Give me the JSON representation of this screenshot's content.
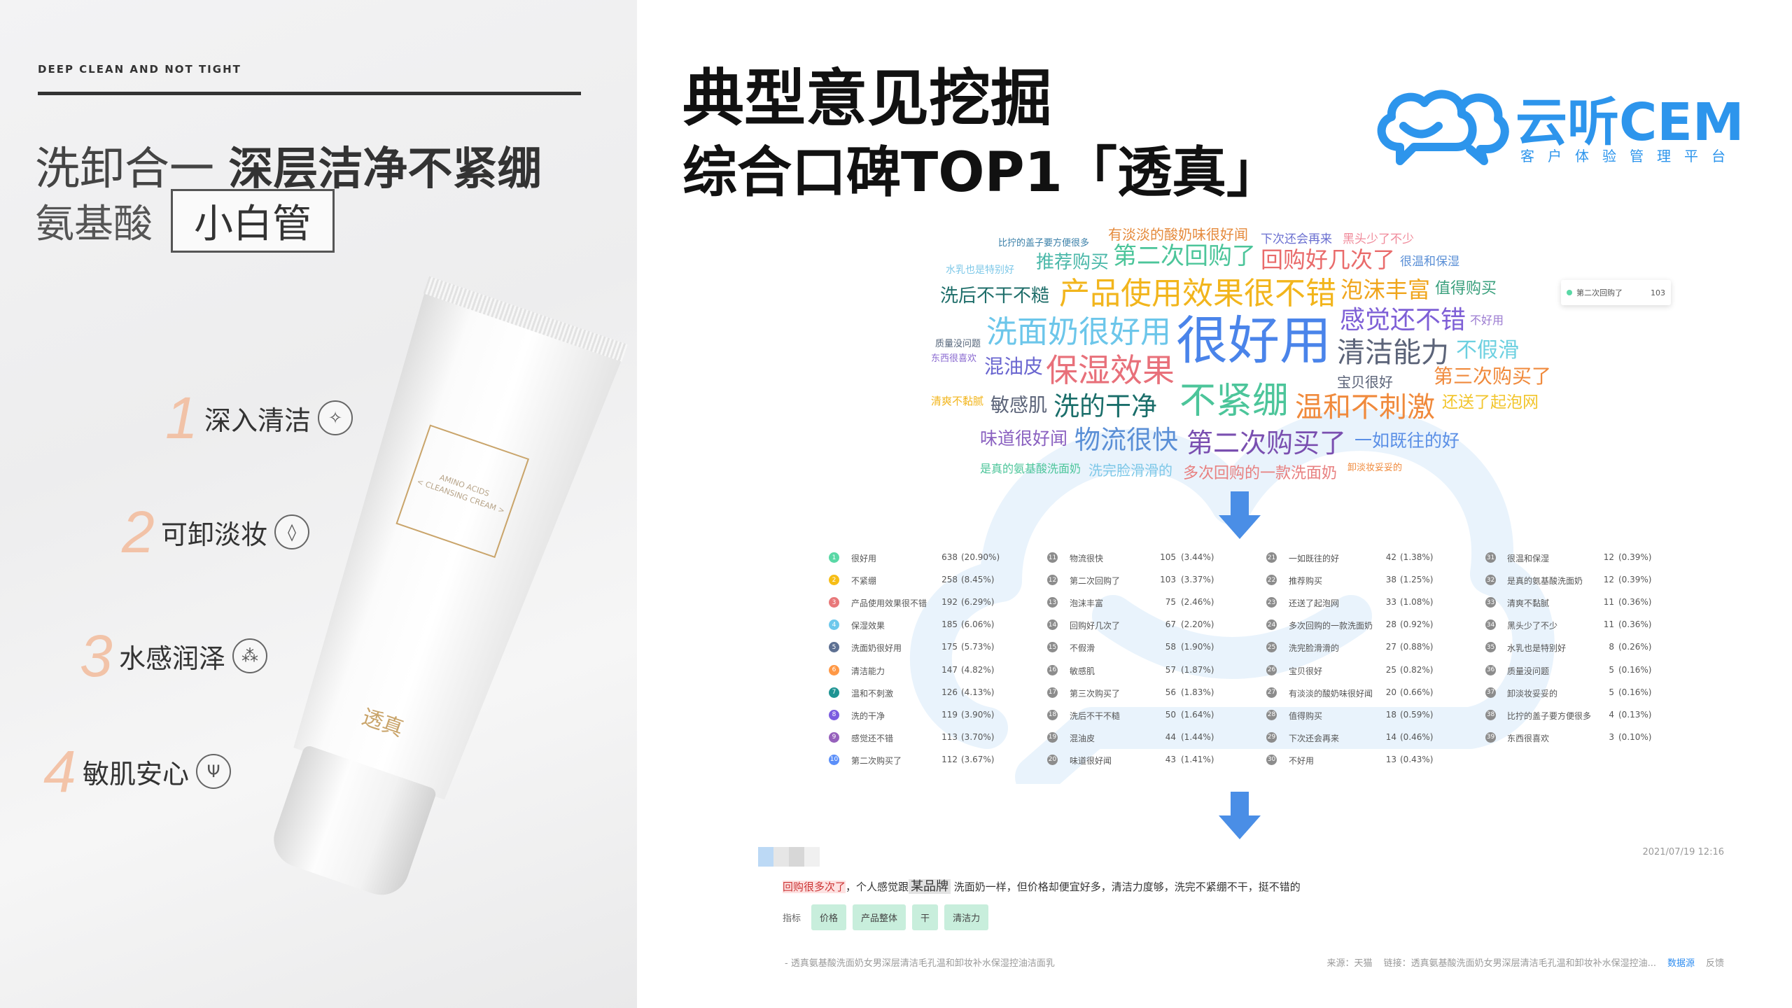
{
  "left": {
    "tagline": "DEEP CLEAN AND NOT TIGHT",
    "headline_light": "洗卸合一 ",
    "headline_bold": "深层洁净不紧绷",
    "sub_text": "氨基酸",
    "sub_box": "小白管",
    "features": [
      {
        "num": "1",
        "text": "深入清洁",
        "icon": "sparkle-icon",
        "glyph": "✧"
      },
      {
        "num": "2",
        "text": "可卸淡妆",
        "icon": "droplet-icon",
        "glyph": "💧"
      },
      {
        "num": "3",
        "text": "水感润泽",
        "icon": "bubbles-icon",
        "glyph": "⁂"
      },
      {
        "num": "4",
        "text": "敏肌安心",
        "icon": "sprout-icon",
        "glyph": "Ψ"
      }
    ],
    "tube": {
      "label_line1": "AMINO ACIDS",
      "label_line2": "< CLEANSING CREAM >",
      "brand": "透真"
    }
  },
  "title": {
    "line1": "典型意见挖掘",
    "line2": "综合口碑TOP1「透真」"
  },
  "logo": {
    "name": "云听CEM",
    "slogan": "客户体验管理平台",
    "color": "#2d95ec"
  },
  "wordcloud": {
    "words": [
      {
        "text": "比拧的盖子要方便很多",
        "color": "#3a7fa8"
      },
      {
        "text": "有淡淡的酸奶味很好闻",
        "color": "#e58a3c"
      },
      {
        "text": "下次还会再来",
        "color": "#6a6fd0"
      },
      {
        "text": "黑头少了不少",
        "color": "#f08a9a"
      },
      {
        "text": "水乳也是特别好",
        "color": "#7ec8e8"
      },
      {
        "text": "推荐购买",
        "color": "#4bb8a9"
      },
      {
        "text": "第二次回购了",
        "color": "#4cc59a"
      },
      {
        "text": "回购好几次了",
        "color": "#e96b6b"
      },
      {
        "text": "很温和保湿",
        "color": "#5a8fd6"
      },
      {
        "text": "洗后不干不糙",
        "color": "#1f6e6a"
      },
      {
        "text": "产品使用效果很不错",
        "color": "#f2b51c"
      },
      {
        "text": "泡沫丰富",
        "color": "#f0a51c"
      },
      {
        "text": "值得购买",
        "color": "#3aa07d"
      },
      {
        "text": "感觉还不错",
        "color": "#7e5fd6"
      },
      {
        "text": "不好用",
        "color": "#9a7ad0"
      },
      {
        "text": "洗面奶很好用",
        "color": "#6cc6ea"
      },
      {
        "text": "很好用",
        "color": "#4a84ea"
      },
      {
        "text": "清洁能力",
        "color": "#5b6378"
      },
      {
        "text": "不假滑",
        "color": "#6cd0e0"
      },
      {
        "text": "质量没问题",
        "color": "#55657a"
      },
      {
        "text": "东西很喜欢",
        "color": "#8a6ad0"
      },
      {
        "text": "混油皮",
        "color": "#6a66d0"
      },
      {
        "text": "保湿效果",
        "color": "#e8707a"
      },
      {
        "text": "宝贝很好",
        "color": "#5b6378"
      },
      {
        "text": "第三次购买了",
        "color": "#f08a3c"
      },
      {
        "text": "清爽不黏腻",
        "color": "#f2b51c"
      },
      {
        "text": "敏感肌",
        "color": "#5b6378"
      },
      {
        "text": "洗的干净",
        "color": "#1a6e6a"
      },
      {
        "text": "不紧绷",
        "color": "#4cc59a"
      },
      {
        "text": "温和不刺激",
        "color": "#f08a3c"
      },
      {
        "text": "还送了起泡网",
        "color": "#f2c52c"
      },
      {
        "text": "味道很好闻",
        "color": "#8a60c0"
      },
      {
        "text": "物流很快",
        "color": "#5a8fd6"
      },
      {
        "text": "第二次购买了",
        "color": "#7a4fb0"
      },
      {
        "text": "一如既往的好",
        "color": "#5a8fe6"
      },
      {
        "text": "是真的氨基酸洗面奶",
        "color": "#4cc59a"
      },
      {
        "text": "洗完脸滑滑的",
        "color": "#7ec8e8"
      },
      {
        "text": "多次回购的一款洗面奶",
        "color": "#e88080"
      },
      {
        "text": "卸淡妆妥妥的",
        "color": "#f08a3c"
      }
    ],
    "tooltip": {
      "label": "第二次回购了",
      "value": "103"
    }
  },
  "ranking": {
    "top_colors": [
      "#5ad8a6",
      "#f6bd16",
      "#e8787a",
      "#6dc8ec",
      "#5d7092",
      "#ff9845",
      "#1e9493",
      "#7b5ce0",
      "#9661bc",
      "#5b8ff9"
    ],
    "other_color": "#8c8c8c",
    "rows": [
      [
        "很好用",
        "638",
        "(20.90%)"
      ],
      [
        "不紧绷",
        "258",
        "(8.45%)"
      ],
      [
        "产品使用效果很不错",
        "192",
        "(6.29%)"
      ],
      [
        "保湿效果",
        "185",
        "(6.06%)"
      ],
      [
        "洗面奶很好用",
        "175",
        "(5.73%)"
      ],
      [
        "清洁能力",
        "147",
        "(4.82%)"
      ],
      [
        "温和不刺激",
        "126",
        "(4.13%)"
      ],
      [
        "洗的干净",
        "119",
        "(3.90%)"
      ],
      [
        "感觉还不错",
        "113",
        "(3.70%)"
      ],
      [
        "第二次购买了",
        "112",
        "(3.67%)"
      ],
      [
        "物流很快",
        "105",
        "(3.44%)"
      ],
      [
        "第二次回购了",
        "103",
        "(3.37%)"
      ],
      [
        "泡沫丰富",
        "75",
        "(2.46%)"
      ],
      [
        "回购好几次了",
        "67",
        "(2.20%)"
      ],
      [
        "不假滑",
        "58",
        "(1.90%)"
      ],
      [
        "敏感肌",
        "57",
        "(1.87%)"
      ],
      [
        "第三次购买了",
        "56",
        "(1.83%)"
      ],
      [
        "洗后不干不糙",
        "50",
        "(1.64%)"
      ],
      [
        "混油皮",
        "44",
        "(1.44%)"
      ],
      [
        "味道很好闻",
        "43",
        "(1.41%)"
      ],
      [
        "一如既往的好",
        "42",
        "(1.38%)"
      ],
      [
        "推荐购买",
        "38",
        "(1.25%)"
      ],
      [
        "还送了起泡网",
        "33",
        "(1.08%)"
      ],
      [
        "多次回购的一款洗面奶",
        "28",
        "(0.92%)"
      ],
      [
        "洗完脸滑滑的",
        "27",
        "(0.88%)"
      ],
      [
        "宝贝很好",
        "25",
        "(0.82%)"
      ],
      [
        "有淡淡的酸奶味很好闻",
        "20",
        "(0.66%)"
      ],
      [
        "值得购买",
        "18",
        "(0.59%)"
      ],
      [
        "下次还会再来",
        "14",
        "(0.46%)"
      ],
      [
        "不好用",
        "13",
        "(0.43%)"
      ],
      [
        "很温和保湿",
        "12",
        "(0.39%)"
      ],
      [
        "是真的氨基酸洗面奶",
        "12",
        "(0.39%)"
      ],
      [
        "清爽不黏腻",
        "11",
        "(0.36%)"
      ],
      [
        "黑头少了不少",
        "11",
        "(0.36%)"
      ],
      [
        "水乳也是特别好",
        "8",
        "(0.26%)"
      ],
      [
        "质量没问题",
        "5",
        "(0.16%)"
      ],
      [
        "卸淡妆妥妥的",
        "5",
        "(0.16%)"
      ],
      [
        "比拧的盖子要方便很多",
        "4",
        "(0.13%)"
      ],
      [
        "东西很喜欢",
        "3",
        "(0.10%)"
      ]
    ]
  },
  "review": {
    "timestamp": "2021/07/19 12:16",
    "highlight": "回购很多次了",
    "text_a": "，个人感觉跟",
    "brand": "某品牌",
    "text_b": " 洗面奶一样，但价格却便宜好多，清洁力度够，洗完不紧绷不干，挺不错的",
    "tags_label": "指标",
    "tags": [
      "价格",
      "产品整体",
      "干",
      "清洁力"
    ],
    "product": "- 透真氨基酸洗面奶女男深层清洁毛孔温和卸妆补水保湿控油洁面乳",
    "source": "来源：天猫",
    "link": "链接：透真氨基酸洗面奶女男深层清洁毛孔温和卸妆补水保湿控油...",
    "datasource": "数据源",
    "feedback": "反馈"
  },
  "arrow_color": "#4a8ee6"
}
